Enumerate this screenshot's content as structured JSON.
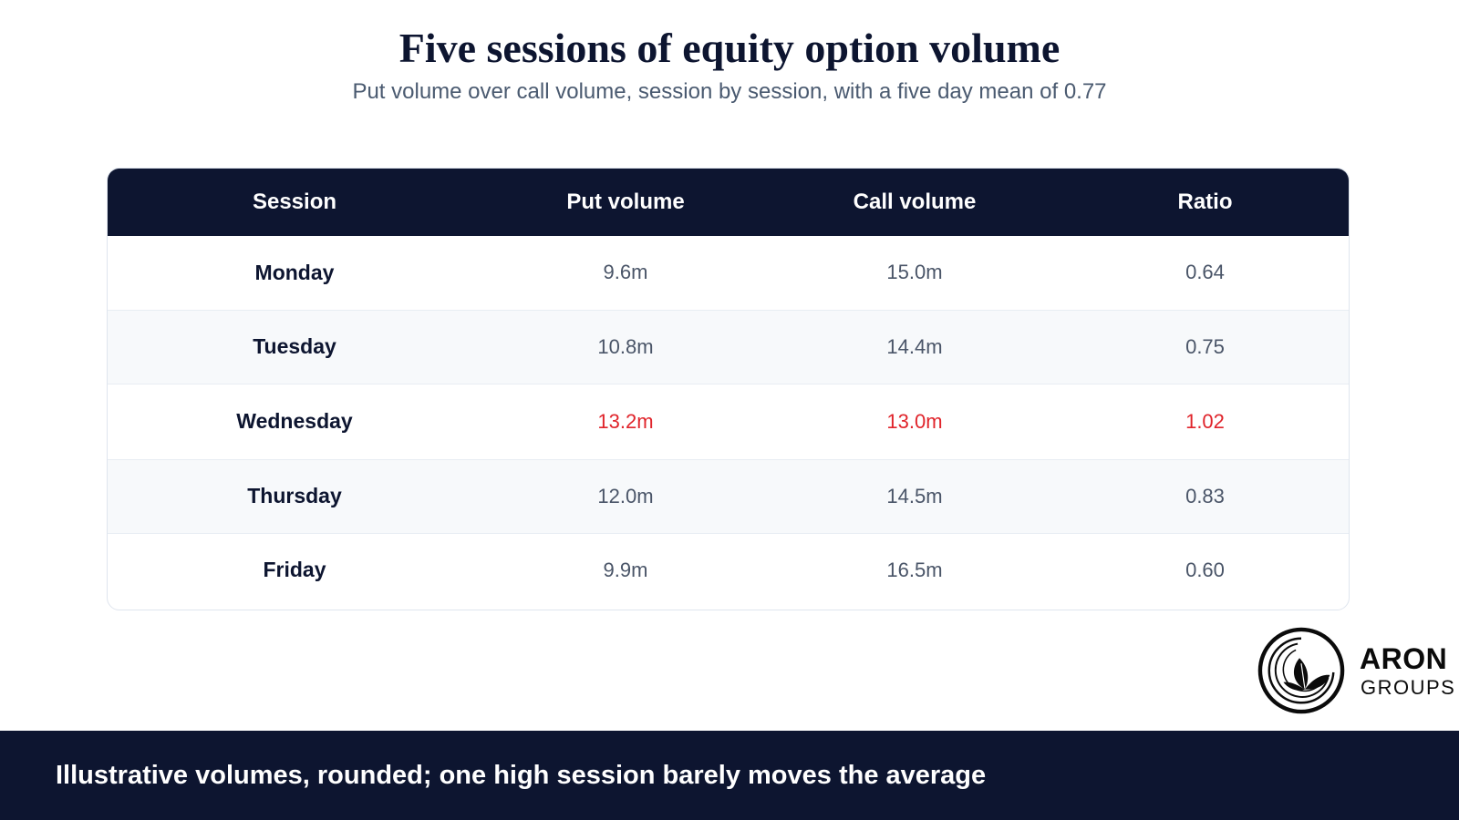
{
  "title": "Five sessions of equity option volume",
  "subtitle": "Put volume over call volume, session by session, with a five day mean of 0.77",
  "colors": {
    "header_bg": "#0d1530",
    "highlight": "#e0242b",
    "stripe": "#f7f9fb"
  },
  "chart_data": {
    "type": "table",
    "columns": [
      "Session",
      "Put volume",
      "Call volume",
      "Ratio"
    ],
    "rows": [
      {
        "session": "Monday",
        "put": "9.6m",
        "call": "15.0m",
        "ratio": "0.64",
        "highlight": false
      },
      {
        "session": "Tuesday",
        "put": "10.8m",
        "call": "14.4m",
        "ratio": "0.75",
        "highlight": false
      },
      {
        "session": "Wednesday",
        "put": "13.2m",
        "call": "13.0m",
        "ratio": "1.02",
        "highlight": true
      },
      {
        "session": "Thursday",
        "put": "12.0m",
        "call": "14.5m",
        "ratio": "0.83",
        "highlight": false
      },
      {
        "session": "Friday",
        "put": "9.9m",
        "call": "16.5m",
        "ratio": "0.60",
        "highlight": false
      }
    ]
  },
  "logo": {
    "icon": "leaf-circle-logo-icon",
    "word1": "ARON",
    "word2": "GROUPS"
  },
  "footer": {
    "text": "Illustrative volumes, rounded; one high session barely moves the average"
  }
}
